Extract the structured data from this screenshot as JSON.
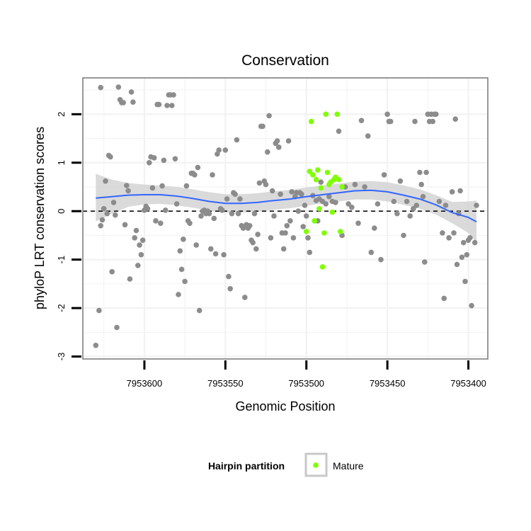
{
  "chart_data": {
    "type": "scatter",
    "title": "Conservation",
    "xlabel": "Genomic Position",
    "ylabel": "phyloP LRT conservation scores",
    "x_reversed": true,
    "xlim": [
      7953638,
      7953388
    ],
    "ylim": [
      -3.05,
      2.75
    ],
    "x_ticks": [
      7953600,
      7953550,
      7953500,
      7953450,
      7953400
    ],
    "x_tick_labels": [
      "7953600",
      "7953550",
      "7953500",
      "7953450",
      "7953400"
    ],
    "y_ticks": [
      -3,
      -2,
      -1,
      0,
      1,
      2
    ],
    "y_tick_labels": [
      "-3",
      "-2",
      "-1",
      "0",
      "1",
      "2"
    ],
    "grid": true,
    "reference_line": {
      "y": 0,
      "style": "dashed"
    },
    "legend": {
      "title": "Hairpin partition",
      "position": "bottom",
      "entries": [
        {
          "label": "Mature",
          "color": "#7fff00"
        }
      ]
    },
    "colors": {
      "other": "#8c8c8c",
      "mature": "#7fff00",
      "smooth": "#3366ff",
      "band": "#d3d3d3"
    },
    "series": [
      {
        "name": "Other",
        "color": "#8c8c8c",
        "points": [
          [
            7953630,
            -2.77
          ],
          [
            7953628,
            -2.05
          ],
          [
            7953627,
            2.55
          ],
          [
            7953627,
            -0.3
          ],
          [
            7953626,
            -0.18
          ],
          [
            7953625,
            0.05
          ],
          [
            7953624,
            0.62
          ],
          [
            7953623,
            -0.05
          ],
          [
            7953622,
            1.15
          ],
          [
            7953621,
            1.12
          ],
          [
            7953620,
            -1.25
          ],
          [
            7953619,
            0.18
          ],
          [
            7953618,
            -0.08
          ],
          [
            7953617,
            -2.4
          ],
          [
            7953616,
            2.56
          ],
          [
            7953615,
            2.3
          ],
          [
            7953614,
            2.24
          ],
          [
            7953613,
            2.24
          ],
          [
            7953612,
            -0.28
          ],
          [
            7953611,
            0.53
          ],
          [
            7953610,
            0.42
          ],
          [
            7953609,
            -1.4
          ],
          [
            7953608,
            2.46
          ],
          [
            7953607,
            2.25
          ],
          [
            7953606,
            -0.55
          ],
          [
            7953605,
            -0.4
          ],
          [
            7953604,
            -1.12
          ],
          [
            7953603,
            -0.7
          ],
          [
            7953602,
            -0.9
          ],
          [
            7953601,
            -0.6
          ],
          [
            7953600,
            0.02
          ],
          [
            7953599,
            0.1
          ],
          [
            7953598,
            0.05
          ],
          [
            7953597,
            1.0
          ],
          [
            7953596,
            1.12
          ],
          [
            7953595,
            0.48
          ],
          [
            7953594,
            1.1
          ],
          [
            7953593,
            -0.2
          ],
          [
            7953592,
            2.2
          ],
          [
            7953591,
            2.2
          ],
          [
            7953590,
            -0.25
          ],
          [
            7953589,
            0.52
          ],
          [
            7953588,
            1.05
          ],
          [
            7953587,
            0.02
          ],
          [
            7953586,
            2.18
          ],
          [
            7953585,
            2.4
          ],
          [
            7953584,
            2.4
          ],
          [
            7953583,
            2.18
          ],
          [
            7953582,
            2.4
          ],
          [
            7953581,
            1.08
          ],
          [
            7953580,
            0.15
          ],
          [
            7953579,
            -1.72
          ],
          [
            7953578,
            -0.82
          ],
          [
            7953577,
            -1.2
          ],
          [
            7953576,
            -0.58
          ],
          [
            7953575,
            -1.45
          ],
          [
            7953574,
            0.52
          ],
          [
            7953573,
            -0.2
          ],
          [
            7953572,
            -0.25
          ],
          [
            7953571,
            0.78
          ],
          [
            7953570,
            0.78
          ],
          [
            7953569,
            0.75
          ],
          [
            7953568,
            -0.7
          ],
          [
            7953567,
            0.9
          ],
          [
            7953566,
            -2.05
          ],
          [
            7953565,
            -0.1
          ],
          [
            7953564,
            0.0
          ],
          [
            7953563,
            0.02
          ],
          [
            7953562,
            -0.05
          ],
          [
            7953561,
            0.0
          ],
          [
            7953560,
            -0.05
          ],
          [
            7953559,
            -0.78
          ],
          [
            7953558,
            0.75
          ],
          [
            7953557,
            -0.15
          ],
          [
            7953556,
            -0.88
          ],
          [
            7953555,
            1.18
          ],
          [
            7953554,
            1.26
          ],
          [
            7953553,
            0.05
          ],
          [
            7953552,
            0.02
          ],
          [
            7953551,
            -0.9
          ],
          [
            7953550,
            1.26
          ],
          [
            7953549,
            0.25
          ],
          [
            7953548,
            -1.35
          ],
          [
            7953547,
            -1.6
          ],
          [
            7953546,
            -0.05
          ],
          [
            7953545,
            0.38
          ],
          [
            7953544,
            0.35
          ],
          [
            7953543,
            1.47
          ],
          [
            7953542,
            -0.05
          ],
          [
            7953541,
            0.25
          ],
          [
            7953540,
            -0.3
          ],
          [
            7953539,
            -0.35
          ],
          [
            7953538,
            -1.78
          ],
          [
            7953537,
            -0.28
          ],
          [
            7953536,
            -0.35
          ],
          [
            7953535,
            -0.3
          ],
          [
            7953534,
            -0.6
          ],
          [
            7953533,
            -0.65
          ],
          [
            7953532,
            -0.05
          ],
          [
            7953531,
            -0.78
          ],
          [
            7953530,
            -0.48
          ],
          [
            7953529,
            0.58
          ],
          [
            7953528,
            1.75
          ],
          [
            7953527,
            1.75
          ],
          [
            7953526,
            0.62
          ],
          [
            7953525,
            0.55
          ],
          [
            7953524,
            1.22
          ],
          [
            7953523,
            1.97
          ],
          [
            7953522,
            -0.55
          ],
          [
            7953521,
            0.42
          ],
          [
            7953520,
            -0.1
          ],
          [
            7953519,
            1.4
          ],
          [
            7953518,
            1.45
          ],
          [
            7953517,
            1.32
          ],
          [
            7953516,
            0.35
          ],
          [
            7953515,
            -0.45
          ],
          [
            7953514,
            -0.78
          ],
          [
            7953513,
            -0.45
          ],
          [
            7953512,
            -0.3
          ],
          [
            7953511,
            1.45
          ],
          [
            7953510,
            -0.2
          ],
          [
            7953509,
            0.4
          ],
          [
            7953508,
            -0.55
          ],
          [
            7953507,
            0.3
          ],
          [
            7953506,
            0.38
          ],
          [
            7953505,
            0.0
          ],
          [
            7953504,
            0.38
          ],
          [
            7953503,
            0.35
          ],
          [
            7953502,
            -0.32
          ],
          [
            7953501,
            0.12
          ],
          [
            7953500,
            -0.1
          ],
          [
            7953499,
            -0.55
          ],
          [
            7953498,
            -0.85
          ],
          [
            7953496,
            0.32
          ],
          [
            7953494,
            0.22
          ],
          [
            7953493,
            -0.2
          ],
          [
            7953492,
            0.25
          ],
          [
            7953491,
            0.6
          ],
          [
            7953490,
            0.2
          ],
          [
            7953488,
            0.15
          ],
          [
            7953486,
            0.3
          ],
          [
            7953484,
            0.2
          ],
          [
            7953482,
            0.18
          ],
          [
            7953480,
            1.65
          ],
          [
            7953478,
            -0.5
          ],
          [
            7953476,
            0.5
          ],
          [
            7953474,
            0.15
          ],
          [
            7953472,
            0.08
          ],
          [
            7953470,
            0.55
          ],
          [
            7953468,
            -0.25
          ],
          [
            7953466,
            1.87
          ],
          [
            7953464,
            0.5
          ],
          [
            7953462,
            1.55
          ],
          [
            7953460,
            -0.85
          ],
          [
            7953458,
            -0.35
          ],
          [
            7953456,
            0.15
          ],
          [
            7953454,
            -1.0
          ],
          [
            7953452,
            0.75
          ],
          [
            7953450,
            2.0
          ],
          [
            7953449,
            1.85
          ],
          [
            7953448,
            1.85
          ],
          [
            7953446,
            0.2
          ],
          [
            7953444,
            -0.05
          ],
          [
            7953442,
            0.62
          ],
          [
            7953440,
            -0.5
          ],
          [
            7953438,
            0.2
          ],
          [
            7953436,
            -0.1
          ],
          [
            7953434,
            0.05
          ],
          [
            7953433,
            1.85
          ],
          [
            7953432,
            0.12
          ],
          [
            7953430,
            0.8
          ],
          [
            7953429,
            0.55
          ],
          [
            7953428,
            0.3
          ],
          [
            7953427,
            -1.05
          ],
          [
            7953426,
            0.8
          ],
          [
            7953425,
            2.0
          ],
          [
            7953424,
            1.85
          ],
          [
            7953423,
            2.0
          ],
          [
            7953422,
            1.85
          ],
          [
            7953421,
            2.0
          ],
          [
            7953420,
            2.0
          ],
          [
            7953418,
            0.2
          ],
          [
            7953416,
            -0.45
          ],
          [
            7953415,
            -1.8
          ],
          [
            7953414,
            0.12
          ],
          [
            7953412,
            -0.55
          ],
          [
            7953410,
            0.4
          ],
          [
            7953409,
            -0.45
          ],
          [
            7953408,
            1.9
          ],
          [
            7953407,
            -1.1
          ],
          [
            7953406,
            -0.05
          ],
          [
            7953405,
            0.42
          ],
          [
            7953404,
            -0.95
          ],
          [
            7953403,
            -0.65
          ],
          [
            7953402,
            -1.45
          ],
          [
            7953401,
            -0.9
          ],
          [
            7953400,
            -0.6
          ],
          [
            7953399,
            -0.55
          ],
          [
            7953398,
            -1.95
          ],
          [
            7953396,
            -0.65
          ],
          [
            7953395,
            0.12
          ]
        ]
      },
      {
        "name": "Mature",
        "color": "#7fff00",
        "points": [
          [
            7953498,
            0.82
          ],
          [
            7953497,
            1.85
          ],
          [
            7953496,
            0.75
          ],
          [
            7953495,
            -0.2
          ],
          [
            7953494,
            0.65
          ],
          [
            7953493,
            0.85
          ],
          [
            7953492,
            0.05
          ],
          [
            7953491,
            0.48
          ],
          [
            7953490,
            -1.15
          ],
          [
            7953489,
            -0.45
          ],
          [
            7953488,
            2.0
          ],
          [
            7953487,
            0.8
          ],
          [
            7953486,
            0.55
          ],
          [
            7953485,
            0.6
          ],
          [
            7953484,
            -0.02
          ],
          [
            7953483,
            0.65
          ],
          [
            7953482,
            0.7
          ],
          [
            7953481,
            2.0
          ],
          [
            7953480,
            0.65
          ],
          [
            7953479,
            -0.42
          ],
          [
            7953478,
            0.5
          ],
          [
            7953500,
            -0.42
          ]
        ]
      }
    ],
    "smooth": {
      "color": "#3366ff",
      "x": [
        7953630,
        7953620,
        7953610,
        7953600,
        7953590,
        7953580,
        7953570,
        7953560,
        7953550,
        7953540,
        7953530,
        7953520,
        7953510,
        7953500,
        7953490,
        7953480,
        7953470,
        7953460,
        7953450,
        7953440,
        7953430,
        7953420,
        7953410,
        7953400,
        7953395
      ],
      "y": [
        0.27,
        0.3,
        0.33,
        0.34,
        0.34,
        0.31,
        0.26,
        0.2,
        0.16,
        0.16,
        0.18,
        0.22,
        0.25,
        0.3,
        0.34,
        0.38,
        0.42,
        0.43,
        0.4,
        0.33,
        0.25,
        0.13,
        -0.03,
        -0.13,
        -0.22
      ],
      "ci_lower": [
        -0.21,
        -0.05,
        0.09,
        0.14,
        0.15,
        0.12,
        0.07,
        0.01,
        -0.03,
        -0.03,
        -0.01,
        0.03,
        0.06,
        0.11,
        0.16,
        0.2,
        0.24,
        0.24,
        0.2,
        0.13,
        0.05,
        -0.07,
        -0.25,
        -0.45,
        -0.65
      ],
      "ci_upper": [
        0.77,
        0.65,
        0.58,
        0.55,
        0.53,
        0.5,
        0.45,
        0.39,
        0.35,
        0.35,
        0.37,
        0.41,
        0.44,
        0.49,
        0.53,
        0.57,
        0.61,
        0.62,
        0.6,
        0.53,
        0.45,
        0.33,
        0.19,
        0.2,
        0.22
      ]
    }
  }
}
